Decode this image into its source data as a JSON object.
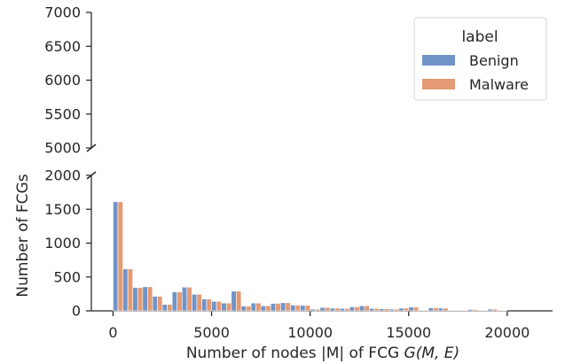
{
  "chart_data": {
    "type": "bar",
    "subtype": "grouped histogram with broken y-axis",
    "xlabel": "Number of nodes |M| of FCG G(M, E)",
    "ylabel": "Number of FCGs",
    "xlim": [
      -1100,
      22300
    ],
    "x_ticks": [
      0,
      5000,
      10000,
      15000,
      20000
    ],
    "x_tick_labels": [
      "0",
      "5000",
      "10000",
      "15000",
      "20000"
    ],
    "y_upper_range": [
      5000,
      7000
    ],
    "y_upper_ticks": [
      "5000",
      "5500",
      "6000",
      "6500",
      "7000"
    ],
    "y_lower_range": [
      0,
      2000
    ],
    "y_lower_ticks": [
      "0",
      "500",
      "1000",
      "1500",
      "2000"
    ],
    "bin_centers": [
      250,
      750,
      1250,
      1750,
      2250,
      2750,
      3250,
      3750,
      4250,
      4750,
      5250,
      5750,
      6250,
      6750,
      7250,
      7750,
      8250,
      8750,
      9250,
      9750,
      10250,
      10750,
      11250,
      11750,
      12250,
      12750,
      13250,
      13750,
      14250,
      14750,
      15250,
      15750,
      16250,
      16750,
      17250,
      17750,
      18250,
      18750,
      19250,
      19750,
      20250,
      20750,
      21250,
      21750
    ],
    "series": [
      {
        "name": "Benign",
        "color": "#7194c8",
        "values": [
          1610,
          620,
          345,
          355,
          215,
          95,
          280,
          350,
          245,
          175,
          140,
          115,
          290,
          70,
          115,
          75,
          110,
          120,
          85,
          80,
          25,
          50,
          40,
          35,
          60,
          75,
          35,
          30,
          25,
          40,
          55,
          10,
          45,
          40,
          10,
          10,
          20,
          10,
          25,
          10,
          0,
          0,
          0,
          0
        ]
      },
      {
        "name": "Malware",
        "color": "#e49a72",
        "values": [
          1610,
          620,
          345,
          355,
          215,
          95,
          280,
          350,
          245,
          175,
          140,
          115,
          290,
          70,
          115,
          75,
          110,
          120,
          85,
          80,
          25,
          50,
          40,
          35,
          60,
          75,
          35,
          30,
          25,
          40,
          55,
          10,
          45,
          40,
          10,
          10,
          20,
          10,
          25,
          10,
          0,
          0,
          0,
          0
        ]
      }
    ],
    "legend": {
      "title": "label",
      "placement": "top-right"
    }
  }
}
